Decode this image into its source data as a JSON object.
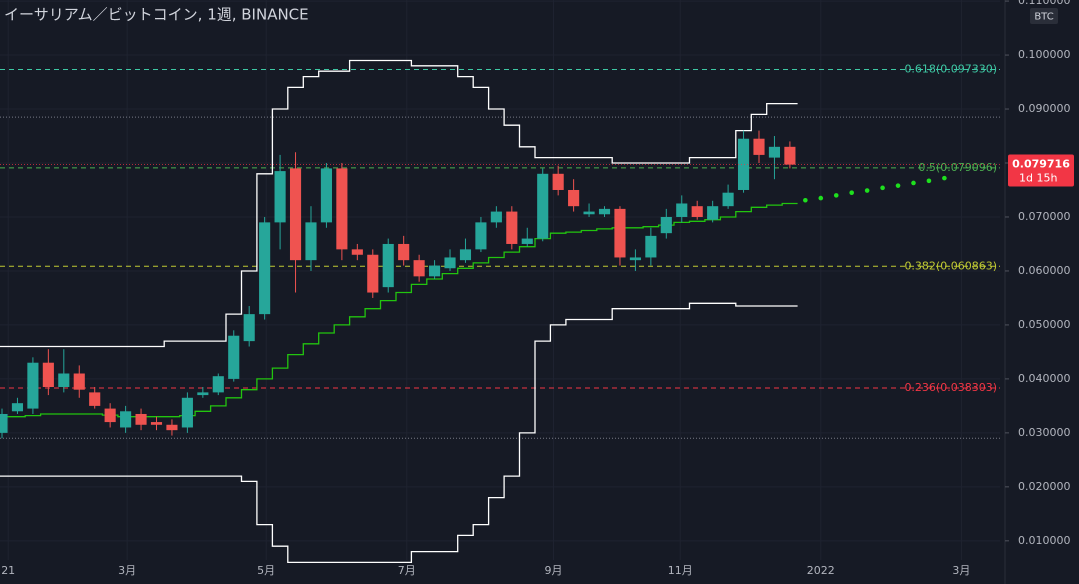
{
  "chart_data": {
    "type": "candlestick",
    "title": "イーサリアム／ビットコイン, 1週, BINANCE",
    "currency": "BTC",
    "xlim": [
      -0.13,
      64.6
    ],
    "ylim": [
      0.002,
      0.1102
    ],
    "xticks": [
      {
        "value": 0.4,
        "label": "21"
      },
      {
        "value": 8.1,
        "label": "3月"
      },
      {
        "value": 17.1,
        "label": "5月"
      },
      {
        "value": 26.2,
        "label": "7月"
      },
      {
        "value": 35.7,
        "label": "9月"
      },
      {
        "value": 43.9,
        "label": "11月"
      },
      {
        "value": 53.0,
        "label": "2022"
      },
      {
        "value": 62.1,
        "label": "3月"
      }
    ],
    "yticks": [
      {
        "value": 0.01,
        "label": "0.010000"
      },
      {
        "value": 0.02,
        "label": "0.020000"
      },
      {
        "value": 0.03,
        "label": "0.030000"
      },
      {
        "value": 0.04,
        "label": "0.040000"
      },
      {
        "value": 0.05,
        "label": "0.050000"
      },
      {
        "value": 0.06,
        "label": "0.060000"
      },
      {
        "value": 0.07,
        "label": "0.070000"
      },
      {
        "value": 0.08,
        "label": "0.080000"
      },
      {
        "value": 0.09,
        "label": "0.090000"
      },
      {
        "value": 0.1,
        "label": "0.100000"
      },
      {
        "value": 0.11,
        "label": "0.110000"
      }
    ],
    "grid": true,
    "candles": {
      "up_color": "#26a69a",
      "down_color": "#ef5350",
      "open": [
        0.03,
        0.034,
        0.0345,
        0.043,
        0.0385,
        0.041,
        0.0375,
        0.0345,
        0.031,
        0.0335,
        0.032,
        0.0315,
        0.031,
        0.037,
        0.0375,
        0.04,
        0.047,
        0.052,
        0.069,
        0.079,
        0.062,
        0.069,
        0.079,
        0.064,
        0.063,
        0.057,
        0.065,
        0.062,
        0.059,
        0.0605,
        0.062,
        0.064,
        0.069,
        0.071,
        0.065,
        0.066,
        0.078,
        0.075,
        0.0705,
        0.0705,
        0.0715,
        0.062,
        0.0625,
        0.067,
        0.07,
        0.072,
        0.0695,
        0.072,
        0.075,
        0.0845,
        0.081,
        0.083
      ],
      "high": [
        0.0345,
        0.0365,
        0.044,
        0.0455,
        0.0455,
        0.0425,
        0.0385,
        0.0355,
        0.035,
        0.0345,
        0.033,
        0.0325,
        0.0375,
        0.0385,
        0.041,
        0.049,
        0.0535,
        0.07,
        0.0815,
        0.082,
        0.072,
        0.08,
        0.08,
        0.065,
        0.064,
        0.066,
        0.0665,
        0.063,
        0.062,
        0.064,
        0.066,
        0.07,
        0.072,
        0.072,
        0.068,
        0.079,
        0.0795,
        0.077,
        0.0725,
        0.072,
        0.072,
        0.064,
        0.068,
        0.0715,
        0.074,
        0.073,
        0.073,
        0.076,
        0.086,
        0.086,
        0.085,
        0.084
      ],
      "low": [
        0.029,
        0.0335,
        0.0335,
        0.037,
        0.0375,
        0.0365,
        0.0345,
        0.031,
        0.03,
        0.0305,
        0.0305,
        0.0295,
        0.03,
        0.0365,
        0.037,
        0.0395,
        0.046,
        0.051,
        0.064,
        0.056,
        0.06,
        0.068,
        0.062,
        0.062,
        0.055,
        0.056,
        0.061,
        0.058,
        0.0585,
        0.06,
        0.0615,
        0.0635,
        0.068,
        0.064,
        0.0645,
        0.0655,
        0.074,
        0.071,
        0.07,
        0.07,
        0.061,
        0.06,
        0.061,
        0.066,
        0.069,
        0.0695,
        0.069,
        0.0715,
        0.0745,
        0.08,
        0.077,
        0.079
      ],
      "close": [
        0.0335,
        0.0355,
        0.043,
        0.0385,
        0.041,
        0.038,
        0.035,
        0.032,
        0.034,
        0.0315,
        0.0315,
        0.0305,
        0.0365,
        0.0375,
        0.0405,
        0.048,
        0.052,
        0.069,
        0.0785,
        0.062,
        0.069,
        0.079,
        0.064,
        0.063,
        0.056,
        0.065,
        0.062,
        0.059,
        0.061,
        0.0625,
        0.064,
        0.069,
        0.071,
        0.065,
        0.066,
        0.078,
        0.075,
        0.072,
        0.071,
        0.0715,
        0.0625,
        0.0625,
        0.0665,
        0.07,
        0.0725,
        0.07,
        0.072,
        0.0745,
        0.0845,
        0.0815,
        0.083,
        0.0797
      ]
    },
    "series": [
      {
        "color": "#22c40f",
        "values": [
          0.033,
          0.033,
          0.0332,
          0.0335,
          0.0335,
          0.0335,
          0.0335,
          0.0333,
          0.033,
          0.033,
          0.033,
          0.033,
          0.0332,
          0.034,
          0.035,
          0.0365,
          0.038,
          0.04,
          0.042,
          0.0445,
          0.0465,
          0.0485,
          0.05,
          0.0515,
          0.053,
          0.0545,
          0.056,
          0.0575,
          0.0585,
          0.0595,
          0.0605,
          0.0615,
          0.0625,
          0.0635,
          0.0645,
          0.066,
          0.067,
          0.0672,
          0.0675,
          0.0678,
          0.068,
          0.068,
          0.0682,
          0.0685,
          0.069,
          0.0692,
          0.0695,
          0.07,
          0.071,
          0.0718,
          0.0722,
          0.0725
        ]
      },
      {
        "color": "#ffffff",
        "values": [
          0.046,
          0.046,
          0.046,
          0.046,
          0.046,
          0.046,
          0.046,
          0.046,
          0.046,
          0.046,
          0.046,
          0.047,
          0.047,
          0.047,
          0.047,
          0.052,
          0.06,
          0.078,
          0.09,
          0.094,
          0.096,
          0.097,
          0.097,
          0.099,
          0.099,
          0.099,
          0.099,
          0.098,
          0.098,
          0.098,
          0.096,
          0.094,
          0.09,
          0.087,
          0.083,
          0.081,
          0.081,
          0.081,
          0.081,
          0.081,
          0.08,
          0.08,
          0.08,
          0.08,
          0.08,
          0.081,
          0.081,
          0.081,
          0.086,
          0.089,
          0.091,
          0.091
        ]
      },
      {
        "color": "#ffffff",
        "values": [
          0.022,
          0.022,
          0.022,
          0.022,
          0.022,
          0.022,
          0.022,
          0.022,
          0.022,
          0.022,
          0.022,
          0.022,
          0.022,
          0.022,
          0.022,
          0.022,
          0.021,
          0.013,
          0.009,
          0.006,
          0.006,
          0.006,
          0.006,
          0.006,
          0.006,
          0.006,
          0.006,
          0.008,
          0.008,
          0.008,
          0.011,
          0.013,
          0.018,
          0.022,
          0.03,
          0.047,
          0.05,
          0.051,
          0.051,
          0.051,
          0.053,
          0.053,
          0.053,
          0.053,
          0.053,
          0.054,
          0.054,
          0.054,
          0.0535,
          0.0535,
          0.0535,
          0.0535
        ]
      }
    ],
    "projection": {
      "color": "#1ee01e",
      "x": [
        52,
        53,
        54,
        55,
        56,
        57,
        58,
        59,
        60,
        61
      ],
      "values": [
        0.0731,
        0.0735,
        0.074,
        0.0745,
        0.0749,
        0.0754,
        0.0758,
        0.0763,
        0.0767,
        0.0772
      ]
    },
    "levels": [
      {
        "value": 0.09733,
        "label": "0.618(0.097330)",
        "color": "#3ec8a4"
      },
      {
        "value": 0.079096,
        "label": "0.5(0.079096)",
        "color": "#4caf50"
      },
      {
        "value": 0.060863,
        "label": "0.382(0.060863)",
        "color": "#c0ca33"
      },
      {
        "value": 0.038303,
        "label": "0.236(0.038303)",
        "color": "#f23645"
      }
    ],
    "ref_levels": [
      0.0885,
      0.029
    ],
    "price_tag": {
      "value": 0.079716,
      "label": "0.079716",
      "countdown": "1d 15h",
      "color": "#f23645"
    }
  }
}
